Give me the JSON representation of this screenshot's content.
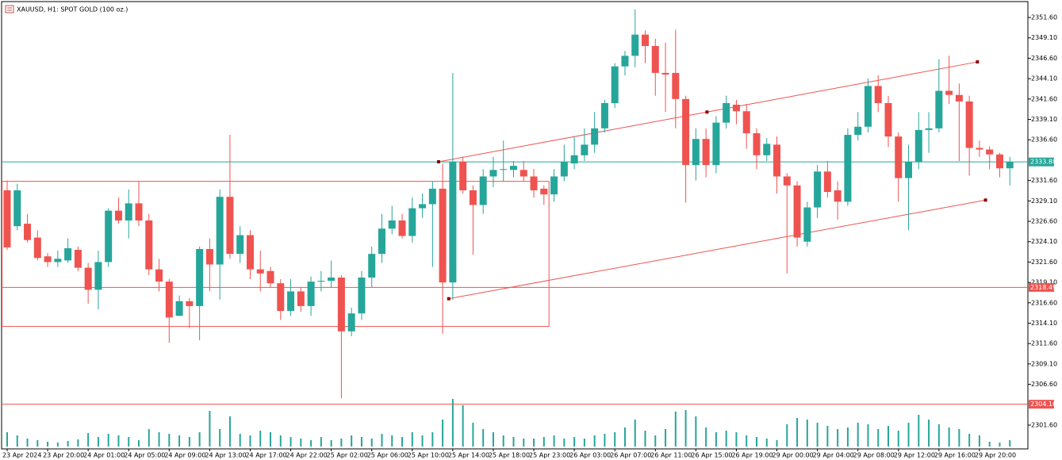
{
  "chart_data": {
    "type": "candlestick",
    "title": "XAUUSD, H1:  SPOT GOLD (100 oz.)",
    "up_color": "#26a69a",
    "down_color": "#ef5350",
    "volume_color": "#26a69a",
    "categories": [
      "23 Apr 2024",
      null,
      null,
      null,
      "23 Apr 20:00",
      null,
      null,
      null,
      "24 Apr 01:00",
      null,
      null,
      null,
      "24 Apr 05:00",
      null,
      null,
      null,
      "24 Apr 09:00",
      null,
      null,
      null,
      "24 Apr 13:00",
      null,
      null,
      null,
      "24 Apr 17:00",
      null,
      null,
      null,
      "24 Apr 22:00",
      null,
      null,
      null,
      "25 Apr 02:00",
      null,
      null,
      null,
      "25 Apr 06:00",
      null,
      null,
      null,
      "25 Apr 10:00",
      null,
      null,
      null,
      "25 Apr 14:00",
      null,
      null,
      null,
      "25 Apr 18:00",
      null,
      null,
      null,
      "25 Apr 23:00",
      null,
      null,
      null,
      "26 Apr 03:00",
      null,
      null,
      null,
      "26 Apr 07:00",
      null,
      null,
      null,
      "26 Apr 11:00",
      null,
      null,
      null,
      "26 Apr 15:00",
      null,
      null,
      null,
      "26 Apr 19:00",
      null,
      null,
      null,
      "29 Apr 00:00",
      null,
      null,
      null,
      "29 Apr 04:00",
      null,
      null,
      null,
      "29 Apr 08:00",
      null,
      null,
      null,
      "29 Apr 12:00",
      null,
      null,
      null,
      "29 Apr 16:00",
      null,
      null,
      null,
      "29 Apr 20:00",
      null,
      null,
      null
    ],
    "open": [
      2330.4,
      2326.0,
      2326.3,
      2324.6,
      2322.3,
      2321.6,
      2321.8,
      2323.1,
      2320.9,
      2318.2,
      2321.6,
      2327.9,
      2326.7,
      2328.8,
      2326.7,
      2320.7,
      2319.2,
      2315.0,
      2316.8,
      2316.2,
      2323.2,
      2321.3,
      2329.6,
      2322.6,
      2324.9,
      2320.7,
      2320.5,
      2319.0,
      2315.6,
      2318.0,
      2316.2,
      2319.2,
      2319.3,
      2319.7,
      2313.1,
      2315.3,
      2319.7,
      2322.6,
      2325.7,
      2326.7,
      2324.8,
      2328.2,
      2328.7,
      2330.6,
      2319.1,
      2333.9,
      2330.4,
      2328.6,
      2332.1,
      2332.9,
      2332.9,
      2332.9,
      2332.1,
      2330.6,
      2329.9,
      2332.1,
      2333.7,
      2334.7,
      2336.0,
      2338.0,
      2341.1,
      2345.6,
      2346.9,
      2349.5,
      2348.1,
      2344.8,
      2344.8,
      2341.6,
      2333.5,
      2336.7,
      2333.5,
      2338.7,
      2340.9,
      2340.1,
      2337.4,
      2334.7,
      2336.0,
      2332.1,
      2331.0,
      2324.1,
      2328.3,
      2332.7,
      2330.4,
      2329.0,
      2337.2,
      2338.2,
      2343.2,
      2341.1,
      2337.0,
      2331.9,
      2333.9,
      2337.8,
      2338.0,
      2342.6,
      2342.1,
      2341.3,
      2335.6,
      2335.4,
      2334.8,
      2333.1
    ],
    "high": [
      2331.6,
      2331.2,
      2327.5,
      2325.5,
      2322.7,
      2323.0,
      2324.5,
      2323.5,
      2321.5,
      2323.0,
      2328.2,
      2329.5,
      2330.5,
      2331.5,
      2327.5,
      2322.0,
      2319.5,
      2317.5,
      2317.2,
      2323.5,
      2324.5,
      2330.5,
      2337.2,
      2326.0,
      2325.5,
      2323.0,
      2321.0,
      2319.5,
      2319.5,
      2318.5,
      2319.8,
      2320.5,
      2321.8,
      2320.0,
      2316.0,
      2320.5,
      2323.5,
      2327.5,
      2328.5,
      2327.5,
      2329.5,
      2330.0,
      2331.5,
      2333.7,
      2344.8,
      2334.5,
      2331.0,
      2333.0,
      2334.5,
      2336.5,
      2334.0,
      2334.0,
      2333.0,
      2331.0,
      2333.0,
      2336.0,
      2337.0,
      2338.0,
      2340.0,
      2341.5,
      2346.0,
      2347.5,
      2352.6,
      2350.0,
      2349.0,
      2348.5,
      2350.1,
      2342.0,
      2338.0,
      2338.0,
      2339.5,
      2342.0,
      2341.5,
      2341.0,
      2338.0,
      2336.8,
      2337.0,
      2332.5,
      2331.5,
      2329.0,
      2333.5,
      2334.0,
      2331.5,
      2338.0,
      2340.0,
      2344.1,
      2344.5,
      2342.0,
      2337.5,
      2336.0,
      2340.0,
      2340.0,
      2346.5,
      2346.9,
      2343.5,
      2342.0,
      2336.5,
      2335.8,
      2335.0,
      2334.5
    ],
    "low": [
      2323.1,
      2325.5,
      2324.0,
      2321.8,
      2321.0,
      2321.0,
      2321.5,
      2320.5,
      2316.5,
      2315.8,
      2321.0,
      2326.3,
      2324.5,
      2326.0,
      2320.0,
      2318.0,
      2311.7,
      2315.0,
      2313.5,
      2312.0,
      2318.0,
      2317.0,
      2322.0,
      2321.5,
      2319.5,
      2318.0,
      2318.5,
      2314.5,
      2315.0,
      2315.5,
      2315.0,
      2318.0,
      2318.5,
      2304.9,
      2312.5,
      2314.5,
      2318.5,
      2321.5,
      2325.0,
      2324.5,
      2324.0,
      2327.0,
      2321.0,
      2312.8,
      2317.0,
      2330.0,
      2322.5,
      2327.5,
      2330.8,
      2331.5,
      2332.0,
      2331.5,
      2329.5,
      2328.6,
      2329.0,
      2331.5,
      2333.0,
      2334.0,
      2335.0,
      2337.5,
      2340.5,
      2344.5,
      2345.5,
      2346.0,
      2342.0,
      2340.0,
      2338.0,
      2328.9,
      2331.6,
      2332.0,
      2332.5,
      2338.0,
      2338.5,
      2335.5,
      2333.0,
      2334.0,
      2330.0,
      2320.2,
      2323.5,
      2323.5,
      2327.0,
      2329.5,
      2326.8,
      2328.5,
      2336.5,
      2337.5,
      2340.0,
      2335.7,
      2329.0,
      2325.5,
      2333.0,
      2335.0,
      2337.5,
      2341.0,
      2334.0,
      2332.2,
      2334.5,
      2333.0,
      2332.0,
      2331.0
    ],
    "close": [
      2323.4,
      2330.4,
      2324.3,
      2322.1,
      2321.6,
      2322.0,
      2323.3,
      2320.9,
      2318.2,
      2321.6,
      2327.9,
      2326.7,
      2328.8,
      2326.7,
      2320.7,
      2319.2,
      2314.8,
      2316.8,
      2316.2,
      2323.2,
      2321.3,
      2329.6,
      2322.6,
      2324.9,
      2320.7,
      2320.2,
      2319.0,
      2315.6,
      2318.0,
      2316.2,
      2319.2,
      2319.3,
      2319.7,
      2313.1,
      2315.3,
      2319.7,
      2322.6,
      2325.7,
      2326.7,
      2324.8,
      2328.2,
      2328.7,
      2330.6,
      2319.1,
      2333.9,
      2330.4,
      2328.6,
      2332.1,
      2332.9,
      2333.0,
      2333.4,
      2332.1,
      2330.4,
      2329.9,
      2332.1,
      2333.9,
      2334.7,
      2336.0,
      2338.0,
      2341.1,
      2345.6,
      2346.9,
      2349.5,
      2348.1,
      2344.8,
      2344.6,
      2341.6,
      2333.5,
      2336.7,
      2333.5,
      2338.7,
      2341.1,
      2340.1,
      2337.4,
      2334.7,
      2336.1,
      2332.1,
      2331.0,
      2324.6,
      2328.3,
      2332.7,
      2330.2,
      2329.0,
      2337.2,
      2338.2,
      2343.2,
      2341.1,
      2337.0,
      2331.9,
      2333.9,
      2337.8,
      2338.0,
      2342.6,
      2342.1,
      2341.3,
      2335.6,
      2335.4,
      2334.8,
      2333.1,
      2333.9
    ],
    "volumes": [
      18,
      14,
      10,
      8,
      6,
      5,
      7,
      9,
      17,
      12,
      16,
      14,
      12,
      8,
      22,
      18,
      16,
      14,
      12,
      18,
      45,
      22,
      38,
      16,
      14,
      20,
      18,
      14,
      12,
      10,
      8,
      12,
      8,
      10,
      14,
      12,
      10,
      16,
      14,
      12,
      18,
      14,
      18,
      34,
      60,
      52,
      30,
      22,
      18,
      14,
      12,
      10,
      10,
      12,
      14,
      10,
      12,
      10,
      14,
      16,
      18,
      24,
      34,
      20,
      14,
      22,
      44,
      46,
      38,
      24,
      18,
      20,
      18,
      14,
      12,
      10,
      8,
      28,
      36,
      34,
      30,
      26,
      22,
      24,
      30,
      28,
      22,
      26,
      20,
      30,
      40,
      34,
      28,
      24,
      22,
      16,
      14,
      6,
      5,
      8
    ],
    "ylim": [
      2298.68,
      2353.55
    ],
    "yticks": [
      {
        "value": 2351.6,
        "label": "2351.60"
      },
      {
        "value": 2349.1,
        "label": "2349.10"
      },
      {
        "value": 2346.6,
        "label": "2346.60"
      },
      {
        "value": 2344.1,
        "label": "2344.10"
      },
      {
        "value": 2341.6,
        "label": "2341.60"
      },
      {
        "value": 2339.1,
        "label": "2339.10"
      },
      {
        "value": 2336.6,
        "label": "2336.60"
      },
      {
        "value": 2331.6,
        "label": "2331.60"
      },
      {
        "value": 2329.1,
        "label": "2329.10"
      },
      {
        "value": 2326.6,
        "label": "2326.60"
      },
      {
        "value": 2324.1,
        "label": "2324.10"
      },
      {
        "value": 2321.6,
        "label": "2321.60"
      },
      {
        "value": 2319.1,
        "label": "2319.10"
      },
      {
        "value": 2316.6,
        "label": "2316.60"
      },
      {
        "value": 2314.1,
        "label": "2314.10"
      },
      {
        "value": 2311.6,
        "label": "2311.60"
      },
      {
        "value": 2309.1,
        "label": "2309.10"
      },
      {
        "value": 2306.6,
        "label": "2306.60"
      },
      {
        "value": 2301.6,
        "label": "2301.60"
      }
    ],
    "hlines": [
      {
        "value": 2333.88,
        "color": "#26a69a"
      },
      {
        "value": 2318.49,
        "color": "#ef5350"
      },
      {
        "value": 2304.16,
        "color": "#ef5350"
      }
    ],
    "rectangle": {
      "x": [
        -0.5,
        53.5
      ],
      "y": [
        2331.5,
        2313.7
      ],
      "color": "#ef5350"
    },
    "channel": {
      "color": "#ef5350",
      "upper": [
        [
          42.6,
          2333.9
        ],
        [
          69.1,
          2340.0
        ],
        [
          95.8,
          2346.15
        ]
      ],
      "lower": [
        [
          43.6,
          2317.1
        ],
        [
          96.6,
          2329.2
        ]
      ]
    }
  }
}
